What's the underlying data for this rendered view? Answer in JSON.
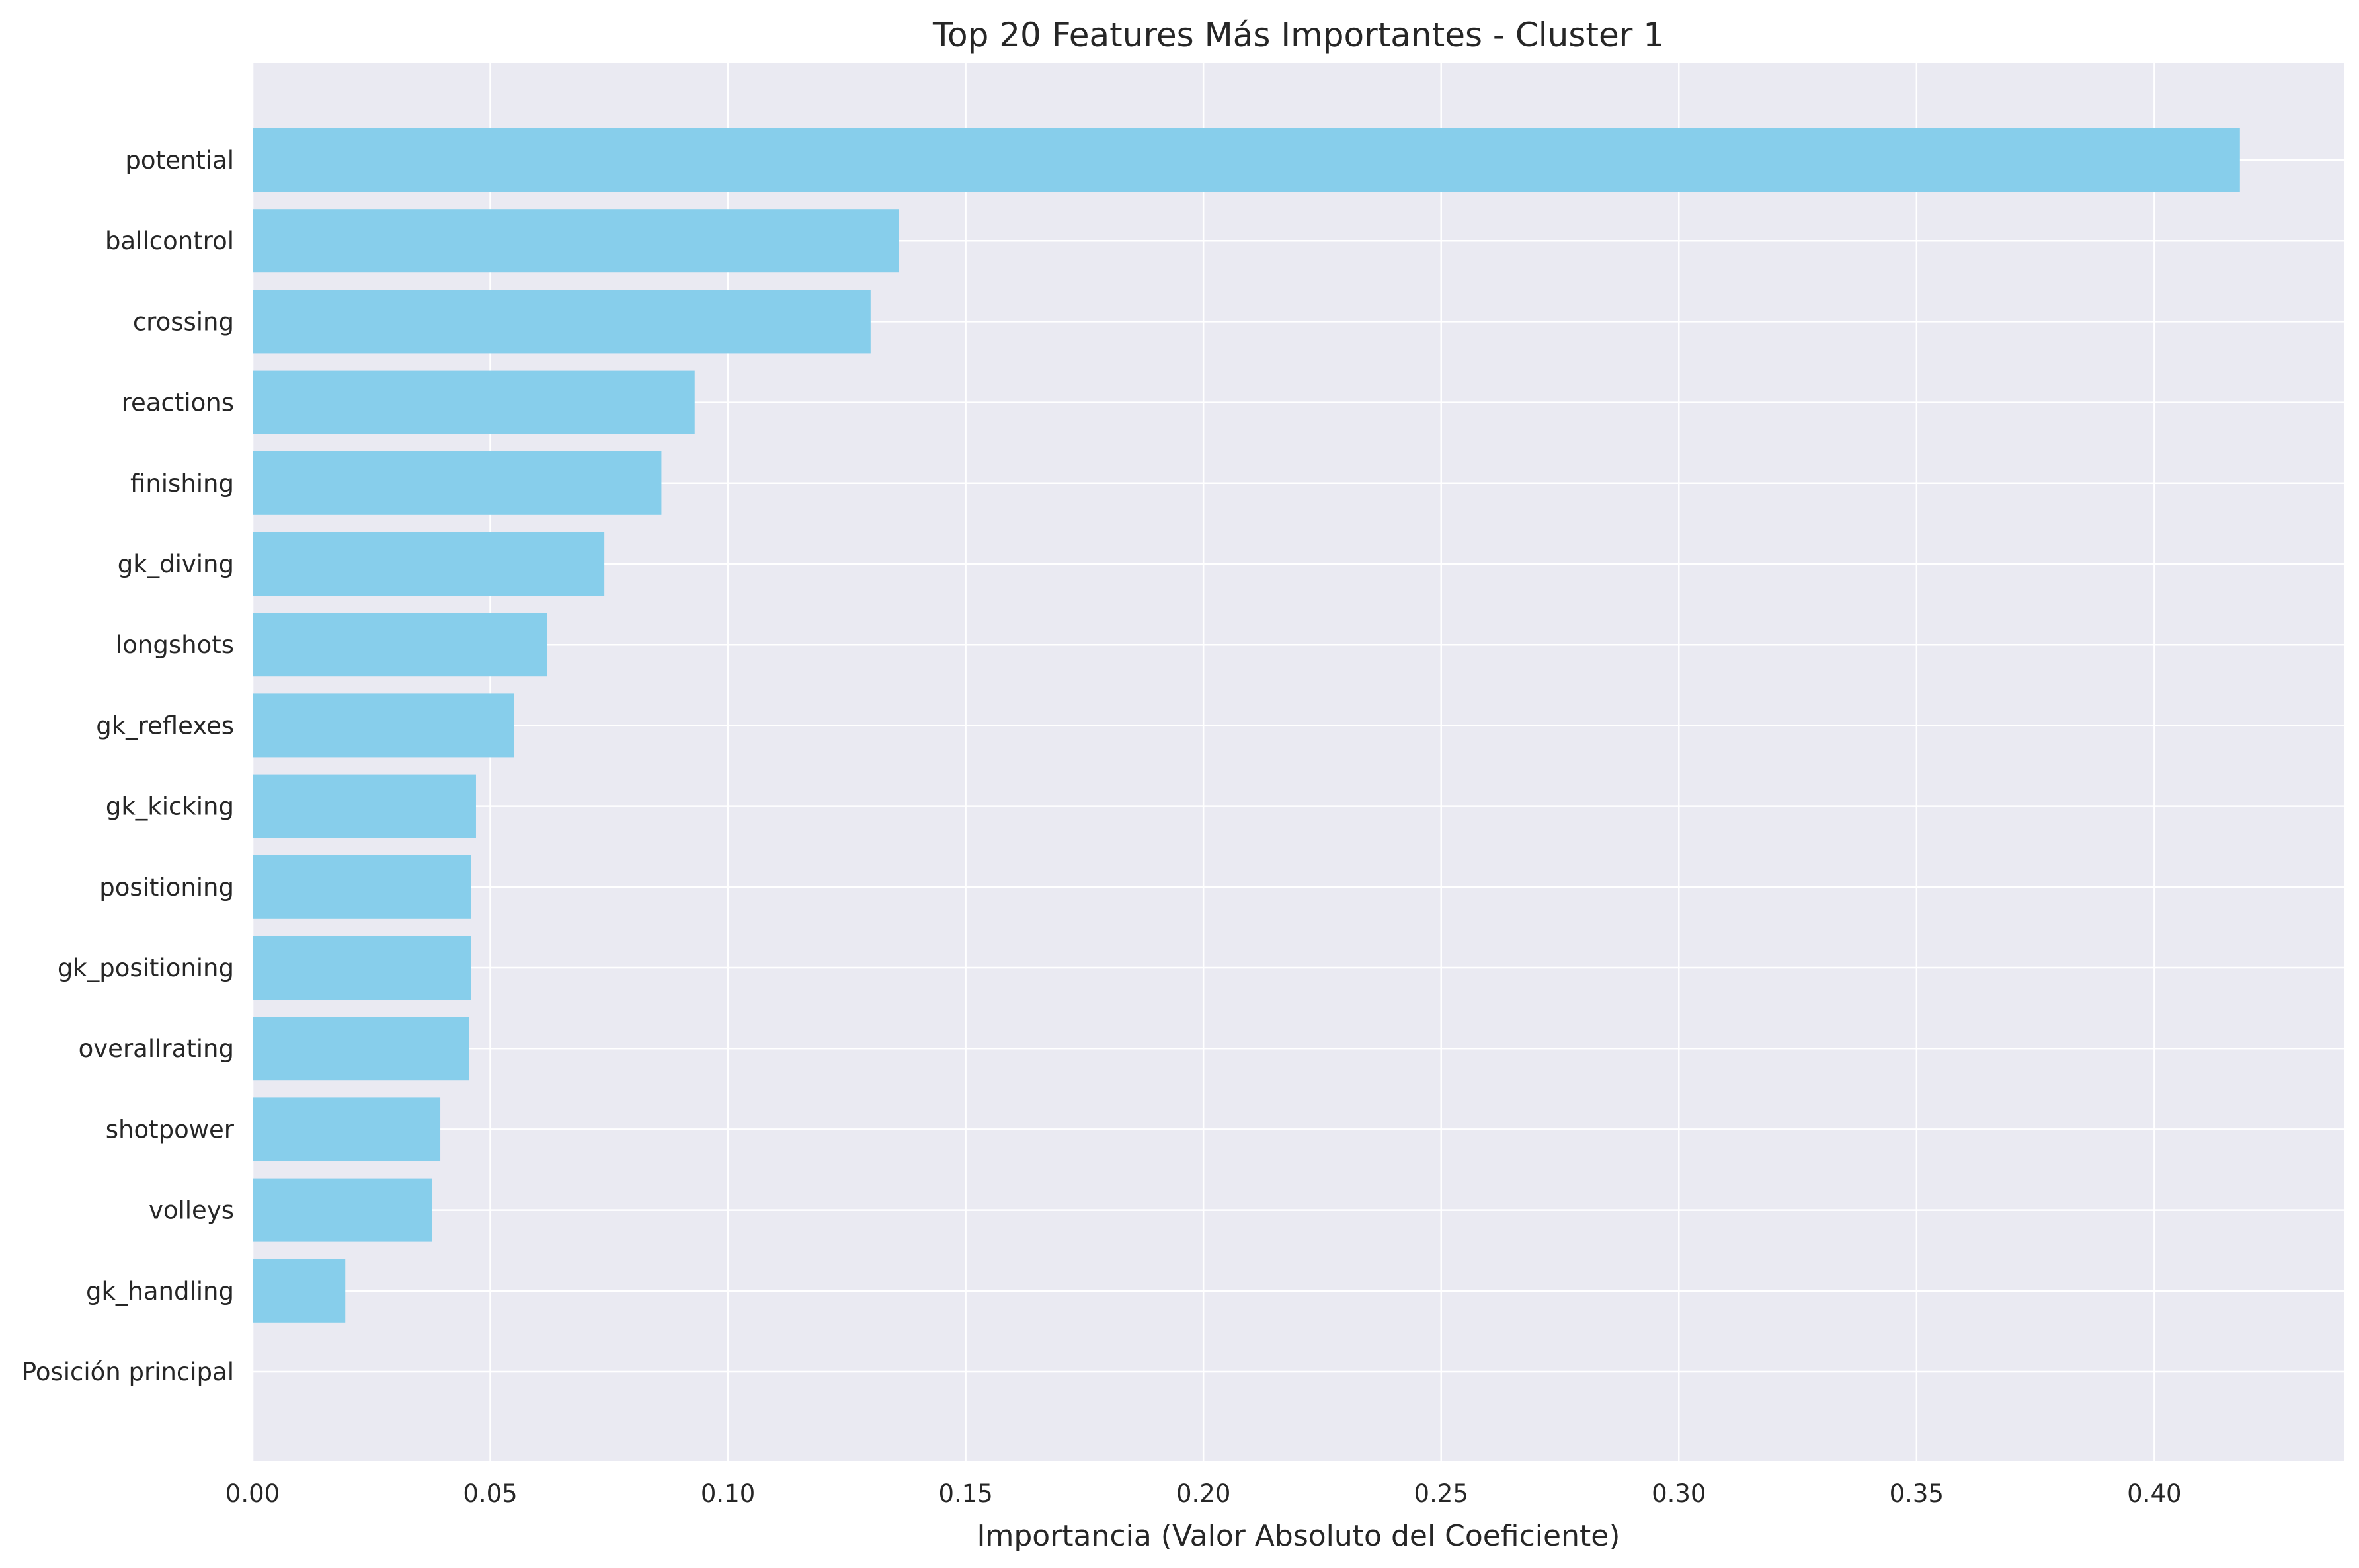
{
  "chart_data": {
    "type": "bar",
    "orientation": "horizontal",
    "title": "Top 20 Features Más Importantes - Cluster 1",
    "xlabel": "Importancia (Valor Absoluto del Coeficiente)",
    "ylabel": "",
    "categories": [
      "potential",
      "ballcontrol",
      "crossing",
      "reactions",
      "finishing",
      "gk_diving",
      "longshots",
      "gk_reflexes",
      "gk_kicking",
      "positioning",
      "gk_positioning",
      "overallrating",
      "shotpower",
      "volleys",
      "gk_handling",
      "Posición principal"
    ],
    "values": [
      0.418,
      0.136,
      0.13,
      0.093,
      0.086,
      0.074,
      0.062,
      0.055,
      0.047,
      0.046,
      0.046,
      0.0455,
      0.0395,
      0.0377,
      0.0195,
      0.0
    ],
    "xlim": [
      0,
      0.44
    ],
    "xticks": [
      "0.00",
      "0.05",
      "0.10",
      "0.15",
      "0.20",
      "0.25",
      "0.30",
      "0.35",
      "0.40"
    ],
    "grid": true,
    "colors": {
      "bar": "#87CEEB",
      "plot_background": "#EAEAF2",
      "grid": "#FFFFFF",
      "text": "#262626"
    }
  }
}
